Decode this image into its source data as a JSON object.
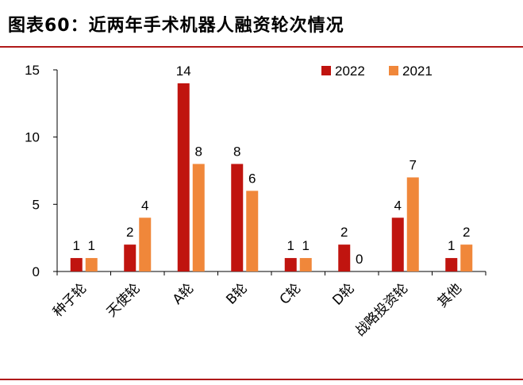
{
  "header": {
    "title": "图表60：近两年手术机器人融资轮次情况"
  },
  "chart_data": {
    "type": "bar",
    "categories": [
      "种子轮",
      "天使轮",
      "A轮",
      "B轮",
      "C轮",
      "D轮",
      "战略投资轮",
      "其他"
    ],
    "series": [
      {
        "name": "2022",
        "values": [
          1,
          2,
          14,
          8,
          1,
          2,
          4,
          1
        ],
        "color": "#c0140f"
      },
      {
        "name": "2021",
        "values": [
          1,
          4,
          8,
          6,
          1,
          0,
          7,
          2
        ],
        "color": "#f0873a"
      }
    ],
    "y_ticks": [
      "0",
      "5",
      "10",
      "15"
    ],
    "ylim": [
      0,
      15
    ],
    "legend_position": "top-right",
    "grid": false,
    "title": "",
    "xlabel": "",
    "ylabel": ""
  }
}
